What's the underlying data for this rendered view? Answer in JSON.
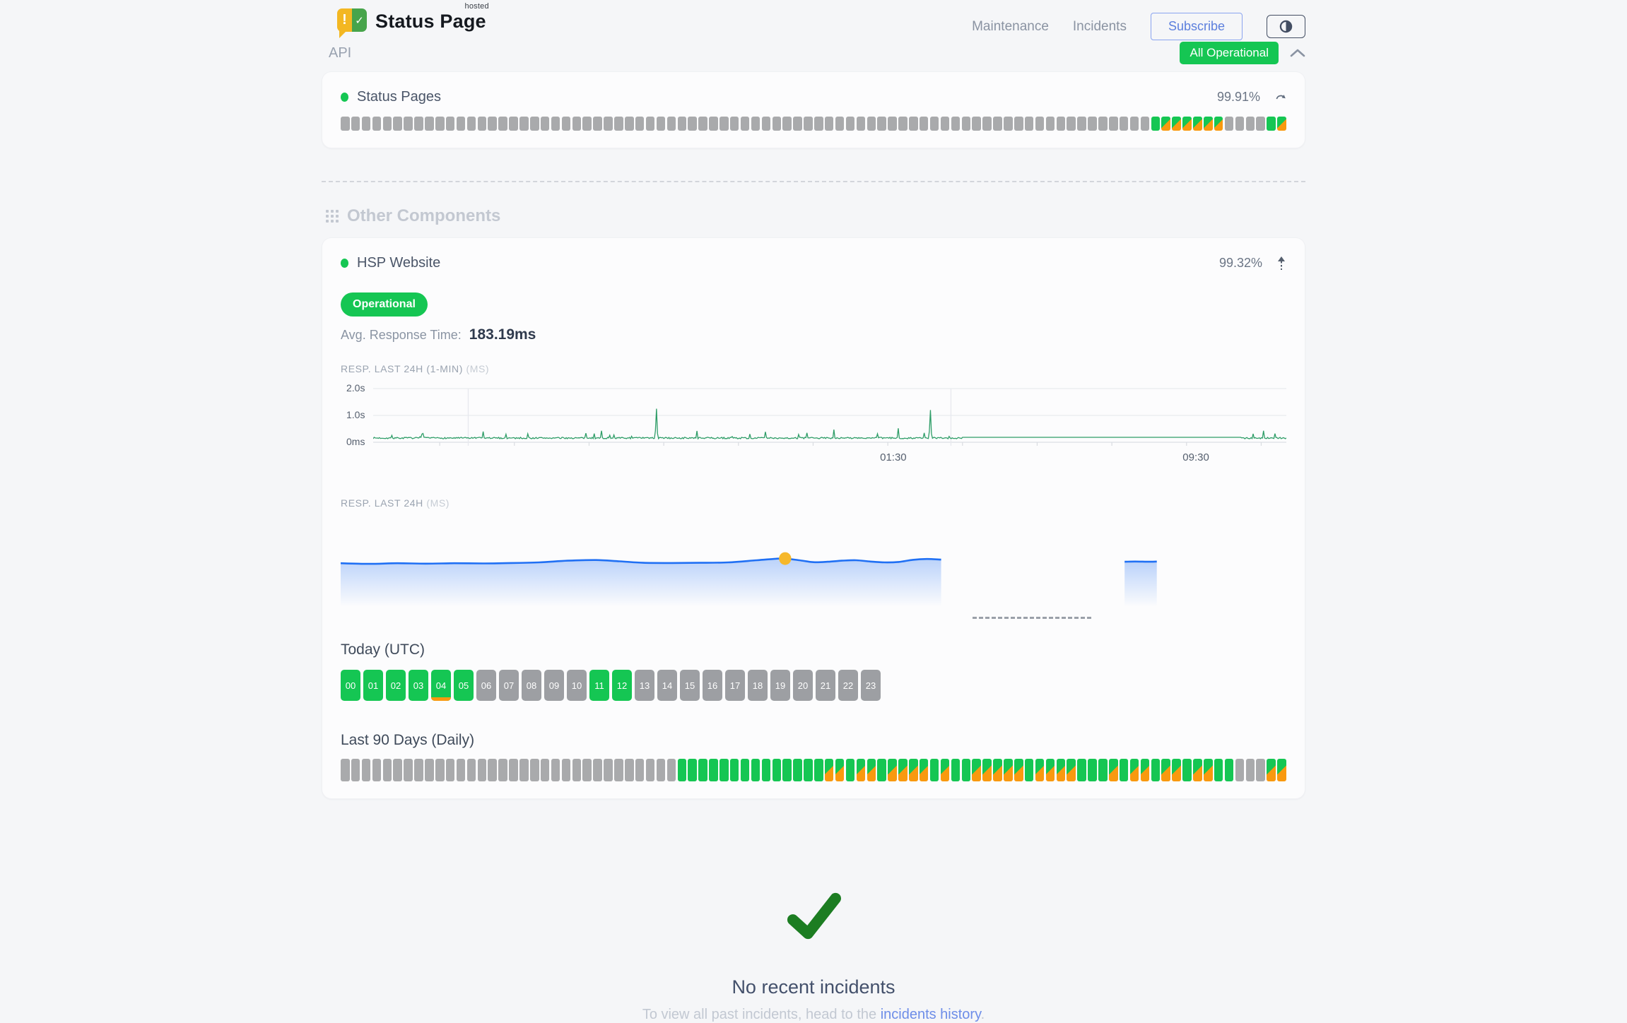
{
  "header": {
    "brand": {
      "name": "Status Page",
      "superscript": "hosted",
      "logo_exclaim": "!",
      "logo_check": "✓"
    },
    "nav": [
      {
        "label": "Maintenance"
      },
      {
        "label": "Incidents"
      }
    ],
    "subscribe_label": "Subscribe",
    "overall_status": {
      "label": "All Operational",
      "color": "#15c653"
    }
  },
  "sections": {
    "api": {
      "title": "API",
      "component": {
        "name": "Status Pages",
        "uptime_percent": "99.91%",
        "bars_runs": [
          [
            "none",
            77
          ],
          [
            "up",
            1
          ],
          [
            "degraded",
            6
          ],
          [
            "none",
            4
          ],
          [
            "up",
            1
          ],
          [
            "degraded",
            1
          ]
        ]
      }
    },
    "other": {
      "title": "Other Components",
      "component": {
        "name": "HSP Website",
        "uptime_percent": "99.32%",
        "status_badge": "Operational",
        "avg_response_label": "Avg. Response Time:",
        "avg_response_value": "183.19ms",
        "today": {
          "title": "Today (UTC)",
          "hours": [
            {
              "label": "00",
              "status": "up"
            },
            {
              "label": "01",
              "status": "up"
            },
            {
              "label": "02",
              "status": "up"
            },
            {
              "label": "03",
              "status": "up"
            },
            {
              "label": "04",
              "status": "up",
              "marker": true
            },
            {
              "label": "05",
              "status": "up"
            },
            {
              "label": "06",
              "status": "none"
            },
            {
              "label": "07",
              "status": "none"
            },
            {
              "label": "08",
              "status": "none"
            },
            {
              "label": "09",
              "status": "none"
            },
            {
              "label": "10",
              "status": "none"
            },
            {
              "label": "11",
              "status": "up"
            },
            {
              "label": "12",
              "status": "up"
            },
            {
              "label": "13",
              "status": "none"
            },
            {
              "label": "14",
              "status": "none"
            },
            {
              "label": "15",
              "status": "none"
            },
            {
              "label": "16",
              "status": "none"
            },
            {
              "label": "17",
              "status": "none"
            },
            {
              "label": "18",
              "status": "none"
            },
            {
              "label": "19",
              "status": "none"
            },
            {
              "label": "20",
              "status": "none"
            },
            {
              "label": "21",
              "status": "none"
            },
            {
              "label": "22",
              "status": "none"
            },
            {
              "label": "23",
              "status": "none"
            }
          ]
        },
        "last90": {
          "title": "Last 90 Days (Daily)",
          "bars_runs": [
            [
              "none",
              32
            ],
            [
              "up",
              14
            ],
            [
              "degraded",
              2
            ],
            [
              "up",
              1
            ],
            [
              "degraded",
              2
            ],
            [
              "up",
              1
            ],
            [
              "degraded",
              4
            ],
            [
              "up",
              1
            ],
            [
              "degraded",
              1
            ],
            [
              "up",
              2
            ],
            [
              "degraded",
              5
            ],
            [
              "up",
              1
            ],
            [
              "degraded",
              4
            ],
            [
              "up",
              3
            ],
            [
              "degraded",
              1
            ],
            [
              "up",
              1
            ],
            [
              "degraded",
              2
            ],
            [
              "up",
              1
            ],
            [
              "degraded",
              2
            ],
            [
              "up",
              1
            ],
            [
              "degraded",
              2
            ],
            [
              "up",
              2
            ],
            [
              "none",
              3
            ],
            [
              "degraded",
              2
            ]
          ]
        }
      }
    }
  },
  "incidents": {
    "title": "No recent incidents",
    "subtext_prefix": "To view all past incidents, head to the ",
    "link_text": "incidents history",
    "subtext_suffix": "."
  },
  "chart_data": [
    {
      "type": "line",
      "label": "RESP. LAST 24H (1-MIN)",
      "unit_label": "(MS)",
      "color": "#2e9d67",
      "ylim_ms": [
        0,
        2000
      ],
      "y_ticks": [
        "2.0s",
        "1.0s",
        "0ms"
      ],
      "x_ticks": [
        "01:30",
        "09:30"
      ],
      "x_tick_pos": [
        0.55,
        0.87
      ],
      "vgrid_pos": [
        0.104,
        0.633
      ],
      "baseline_ms": 150,
      "noise_ms": 55,
      "flat_segment": {
        "from": 0.645,
        "to": 0.95,
        "ms": 185
      },
      "spikes": [
        {
          "x": 0.055,
          "ms": 330
        },
        {
          "x": 0.12,
          "ms": 400
        },
        {
          "x": 0.145,
          "ms": 300
        },
        {
          "x": 0.25,
          "ms": 430
        },
        {
          "x": 0.31,
          "ms": 1250
        },
        {
          "x": 0.355,
          "ms": 420
        },
        {
          "x": 0.43,
          "ms": 390
        },
        {
          "x": 0.475,
          "ms": 350
        },
        {
          "x": 0.505,
          "ms": 470
        },
        {
          "x": 0.575,
          "ms": 520
        },
        {
          "x": 0.61,
          "ms": 1200
        },
        {
          "x": 0.975,
          "ms": 430
        }
      ]
    },
    {
      "type": "area",
      "label": "RESP. LAST 24H",
      "unit_label": "(MS)",
      "color": "#2070f4",
      "marker": {
        "x": 0.47,
        "color": "#f6b82b"
      },
      "segment1_points": [
        [
          0.0,
          196
        ],
        [
          0.03,
          193
        ],
        [
          0.06,
          196
        ],
        [
          0.09,
          194
        ],
        [
          0.12,
          196
        ],
        [
          0.15,
          195
        ],
        [
          0.18,
          197
        ],
        [
          0.21,
          200
        ],
        [
          0.24,
          208
        ],
        [
          0.27,
          211
        ],
        [
          0.295,
          205
        ],
        [
          0.32,
          198
        ],
        [
          0.35,
          197
        ],
        [
          0.38,
          198
        ],
        [
          0.41,
          200
        ],
        [
          0.44,
          210
        ],
        [
          0.46,
          217
        ],
        [
          0.47,
          218
        ],
        [
          0.485,
          210
        ],
        [
          0.5,
          201
        ],
        [
          0.515,
          203
        ],
        [
          0.53,
          208
        ],
        [
          0.545,
          210
        ],
        [
          0.56,
          204
        ],
        [
          0.575,
          200
        ],
        [
          0.59,
          202
        ],
        [
          0.605,
          212
        ],
        [
          0.62,
          216
        ],
        [
          0.635,
          213
        ]
      ],
      "gap_dash": {
        "from": 0.668,
        "to": 0.794
      },
      "segment2_points": [
        [
          0.829,
          203
        ],
        [
          0.84,
          204
        ],
        [
          0.855,
          203
        ],
        [
          0.863,
          204
        ]
      ]
    }
  ]
}
